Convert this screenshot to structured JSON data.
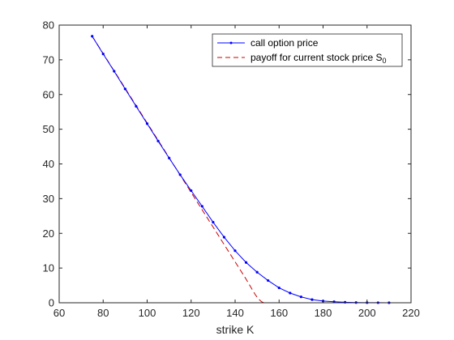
{
  "chart_data": {
    "type": "line",
    "title": "",
    "xlabel": "strike K",
    "ylabel": "",
    "xlim": [
      60,
      220
    ],
    "ylim": [
      0,
      80
    ],
    "xticks": [
      60,
      80,
      100,
      120,
      140,
      160,
      180,
      200,
      220
    ],
    "yticks": [
      0,
      10,
      20,
      30,
      40,
      50,
      60,
      70,
      80
    ],
    "grid": false,
    "legend_position": "top-right",
    "series": [
      {
        "name": "call option price",
        "color": "#0000ff",
        "style": "solid",
        "marker": "point",
        "points": [
          [
            75,
            76.8
          ],
          [
            80,
            71.7
          ],
          [
            85,
            66.7
          ],
          [
            90,
            61.6
          ],
          [
            95,
            56.6
          ],
          [
            100,
            51.6
          ],
          [
            105,
            46.6
          ],
          [
            110,
            41.7
          ],
          [
            115,
            36.9
          ],
          [
            120,
            32.3
          ],
          [
            125,
            27.8
          ],
          [
            130,
            23.2
          ],
          [
            135,
            18.9
          ],
          [
            140,
            15.0
          ],
          [
            145,
            11.6
          ],
          [
            150,
            8.8
          ],
          [
            155,
            6.4
          ],
          [
            160,
            4.3
          ],
          [
            165,
            2.8
          ],
          [
            170,
            1.7
          ],
          [
            175,
            0.9
          ],
          [
            180,
            0.5
          ],
          [
            185,
            0.3
          ],
          [
            190,
            0.15
          ],
          [
            195,
            0.07
          ],
          [
            200,
            0.04
          ],
          [
            205,
            0.02
          ],
          [
            210,
            0.01
          ]
        ]
      },
      {
        "name_prefix": "payoff for current stock price S",
        "name_subscript": "0",
        "color": "#cc0000",
        "style": "dashed",
        "marker": "none",
        "points": [
          [
            75,
            76.8
          ],
          [
            80,
            71.8
          ],
          [
            85,
            66.8
          ],
          [
            90,
            61.8
          ],
          [
            95,
            56.8
          ],
          [
            100,
            51.8
          ],
          [
            105,
            46.8
          ],
          [
            110,
            41.8
          ],
          [
            115,
            36.8
          ],
          [
            120,
            31.8
          ],
          [
            125,
            26.8
          ],
          [
            130,
            21.8
          ],
          [
            135,
            16.8
          ],
          [
            140,
            11.8
          ],
          [
            145,
            6.8
          ],
          [
            149,
            2.5
          ],
          [
            150,
            1.6
          ],
          [
            151,
            0.9
          ],
          [
            152,
            0.3
          ],
          [
            153,
            0.05
          ],
          [
            155,
            0
          ],
          [
            160,
            0
          ],
          [
            180,
            0
          ],
          [
            200,
            0
          ],
          [
            210,
            0
          ]
        ]
      }
    ]
  }
}
